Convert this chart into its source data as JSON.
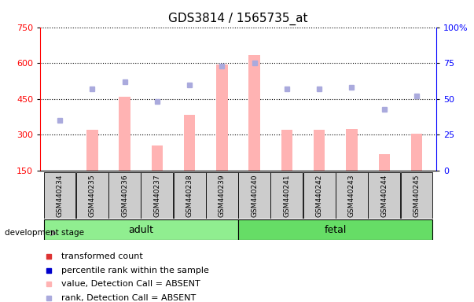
{
  "title": "GDS3814 / 1565735_at",
  "samples": [
    "GSM440234",
    "GSM440235",
    "GSM440236",
    "GSM440237",
    "GSM440238",
    "GSM440239",
    "GSM440240",
    "GSM440241",
    "GSM440242",
    "GSM440243",
    "GSM440244",
    "GSM440245"
  ],
  "bar_heights": [
    150,
    320,
    460,
    255,
    385,
    595,
    635,
    320,
    320,
    325,
    220,
    305
  ],
  "rank_values": [
    35,
    57,
    62,
    48,
    60,
    73,
    75,
    57,
    57,
    58,
    43,
    52
  ],
  "bar_color_absent": "#FFB3B3",
  "rank_color_absent": "#AAAADD",
  "ylim_left": [
    150,
    750
  ],
  "ylim_right": [
    0,
    100
  ],
  "yticks_left": [
    150,
    300,
    450,
    600,
    750
  ],
  "yticks_right": [
    0,
    25,
    50,
    75,
    100
  ],
  "adult_color": "#90EE90",
  "fetal_color": "#66DD66",
  "sample_box_color": "#CCCCCC",
  "title_fontsize": 11,
  "tick_fontsize": 8,
  "legend_fontsize": 8
}
